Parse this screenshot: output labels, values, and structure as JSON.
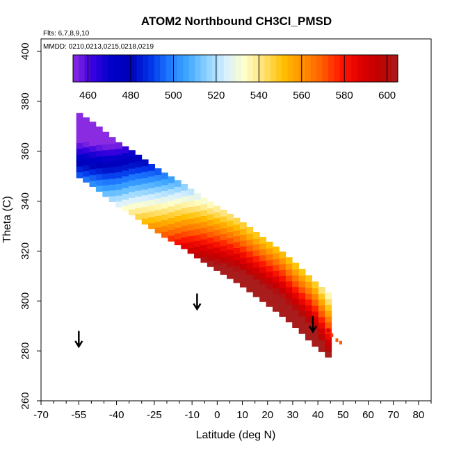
{
  "chart_data": {
    "type": "heatmap",
    "title": "ATOM2 Northbound CH3Cl_PMSD",
    "subtitle": "Flts: 6,7,8,9,10",
    "annotation": "MMDD: 0210,0213,0215,0218,0219",
    "xlabel": "Latitude (deg N)",
    "ylabel": "Theta (C)",
    "xlim": [
      -70,
      85
    ],
    "ylim": [
      260,
      405
    ],
    "x_ticks": [
      -70,
      -55,
      -40,
      -25,
      -10,
      0,
      10,
      20,
      30,
      40,
      50,
      60,
      70,
      80
    ],
    "x_tick_labels": [
      "-70",
      "-55",
      "-40",
      "-25",
      "-10",
      "0",
      "10",
      "20",
      "30",
      "40",
      "50",
      "60",
      "70",
      "80"
    ],
    "y_ticks": [
      260,
      280,
      300,
      320,
      340,
      360,
      380,
      400
    ],
    "y_tick_labels": [
      "260",
      "280",
      "300",
      "320",
      "340",
      "360",
      "380",
      "400"
    ],
    "colorbar": {
      "range": [
        453,
        605
      ],
      "ticks": [
        460,
        480,
        500,
        520,
        540,
        560,
        580,
        600
      ],
      "tick_labels": [
        "460",
        "480",
        "500",
        "520",
        "540",
        "560",
        "580",
        "600"
      ],
      "colors": [
        "#8a2be2",
        "#3a00e0",
        "#0000c8",
        "#0000b8",
        "#0030e8",
        "#1e78ff",
        "#40a8ff",
        "#8cd2ff",
        "#d8f0ff",
        "#ffffc8",
        "#ffe070",
        "#ffc000",
        "#ff9000",
        "#ff6000",
        "#ff1800",
        "#e00000",
        "#c00000",
        "#a81c1c"
      ]
    },
    "band": [
      {
        "lat": -56,
        "theta": 361,
        "value": 458
      },
      {
        "lat": -50,
        "theta": 357,
        "value": 468
      },
      {
        "lat": -45,
        "theta": 353,
        "value": 478
      },
      {
        "lat": -40,
        "theta": 349,
        "value": 492
      },
      {
        "lat": -35,
        "theta": 346,
        "value": 505
      },
      {
        "lat": -28,
        "theta": 341,
        "value": 522
      },
      {
        "lat": -22,
        "theta": 337,
        "value": 535
      },
      {
        "lat": -15,
        "theta": 333,
        "value": 550
      },
      {
        "lat": -8,
        "theta": 328,
        "value": 565
      },
      {
        "lat": 0,
        "theta": 323,
        "value": 575
      },
      {
        "lat": 8,
        "theta": 318,
        "value": 582
      },
      {
        "lat": 16,
        "theta": 312,
        "value": 585
      },
      {
        "lat": 24,
        "theta": 306,
        "value": 588
      },
      {
        "lat": 31,
        "theta": 300,
        "value": 585
      },
      {
        "lat": 37,
        "theta": 294,
        "value": 585
      },
      {
        "lat": 43,
        "theta": 289,
        "value": 570
      },
      {
        "lat": 47,
        "theta": 286,
        "value": 565
      }
    ],
    "arrows": [
      {
        "lat": -55,
        "theta_top": 288,
        "theta_bottom": 282
      },
      {
        "lat": -8,
        "theta_top": 303,
        "theta_bottom": 297
      },
      {
        "lat": 38,
        "theta_top": 294,
        "theta_bottom": 288
      }
    ]
  }
}
